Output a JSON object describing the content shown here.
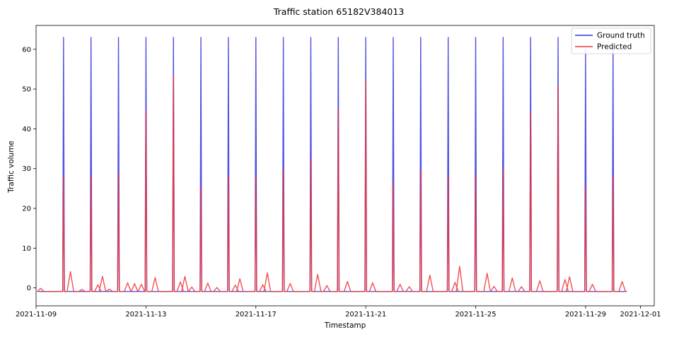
{
  "chart_data": {
    "type": "line",
    "title": "Traffic station 65182V384013",
    "xlabel": "Timestamp",
    "ylabel": "Traffic volume",
    "xlim": [
      "2021-11-09T00:00",
      "2021-12-01T12:00"
    ],
    "ylim": [
      -4.5,
      66
    ],
    "x_ticks": [
      "2021-11-09",
      "2021-11-13",
      "2021-11-17",
      "2021-11-21",
      "2021-11-25",
      "2021-11-29",
      "2021-12-01"
    ],
    "y_ticks": [
      0,
      10,
      20,
      30,
      40,
      50,
      60
    ],
    "grid": false,
    "legend_position": "top-right",
    "baseline": -0.9,
    "series": [
      {
        "name": "Ground truth",
        "color": "#3333dd",
        "spike_dates": [
          "2021-11-10T00:00",
          "2021-11-11T00:00",
          "2021-11-12T00:00",
          "2021-11-13T00:00",
          "2021-11-14T00:00",
          "2021-11-15T00:00",
          "2021-11-16T00:00",
          "2021-11-17T00:00",
          "2021-11-18T00:00",
          "2021-11-19T00:00",
          "2021-11-20T00:00",
          "2021-11-21T00:00",
          "2021-11-22T00:00",
          "2021-11-23T00:00",
          "2021-11-24T00:00",
          "2021-11-25T00:00",
          "2021-11-26T00:00",
          "2021-11-27T00:00",
          "2021-11-28T00:00",
          "2021-11-29T00:00",
          "2021-11-30T00:00"
        ],
        "spike_values": [
          63,
          63,
          63,
          63,
          63,
          63,
          63,
          63,
          63,
          63,
          63,
          63,
          63,
          63,
          63,
          63,
          63,
          63,
          63,
          60,
          60
        ]
      },
      {
        "name": "Predicted",
        "color": "#ee3333",
        "spike_dates": [
          "2021-11-10T00:00",
          "2021-11-11T00:00",
          "2021-11-12T00:00",
          "2021-11-13T00:00",
          "2021-11-14T00:00",
          "2021-11-15T00:00",
          "2021-11-16T00:00",
          "2021-11-17T00:00",
          "2021-11-18T00:00",
          "2021-11-19T00:00",
          "2021-11-20T00:00",
          "2021-11-21T00:00",
          "2021-11-22T00:00",
          "2021-11-23T00:00",
          "2021-11-24T00:00",
          "2021-11-25T00:00",
          "2021-11-26T00:00",
          "2021-11-27T00:00",
          "2021-11-28T00:00",
          "2021-11-29T00:00",
          "2021-11-30T00:00"
        ],
        "spike_values": [
          28,
          28,
          29,
          44.5,
          53.5,
          25.5,
          28,
          28,
          30,
          32.5,
          45,
          52,
          26.5,
          29.5,
          28,
          28.5,
          30,
          44,
          51,
          26,
          28
        ],
        "bumps": [
          {
            "date": "2021-11-09T04:00",
            "value": -0.1
          },
          {
            "date": "2021-11-10T06:00",
            "value": 4.1
          },
          {
            "date": "2021-11-10T16:00",
            "value": -0.4
          },
          {
            "date": "2021-11-11T06:00",
            "value": 0.8
          },
          {
            "date": "2021-11-11T10:00",
            "value": 2.9
          },
          {
            "date": "2021-11-11T16:00",
            "value": -0.3
          },
          {
            "date": "2021-11-12T08:00",
            "value": 1.3
          },
          {
            "date": "2021-11-12T14:00",
            "value": 1.1
          },
          {
            "date": "2021-11-12T20:00",
            "value": 0.9
          },
          {
            "date": "2021-11-13T08:00",
            "value": 2.6
          },
          {
            "date": "2021-11-14T06:00",
            "value": 1.5
          },
          {
            "date": "2021-11-14T10:00",
            "value": 2.9
          },
          {
            "date": "2021-11-14T16:00",
            "value": 0.2
          },
          {
            "date": "2021-11-15T06:00",
            "value": 1.2
          },
          {
            "date": "2021-11-15T14:00",
            "value": 0.1
          },
          {
            "date": "2021-11-16T06:00",
            "value": 0.7
          },
          {
            "date": "2021-11-16T10:00",
            "value": 2.3
          },
          {
            "date": "2021-11-17T06:00",
            "value": 0.8
          },
          {
            "date": "2021-11-17T10:00",
            "value": 3.8
          },
          {
            "date": "2021-11-18T06:00",
            "value": 1.1
          },
          {
            "date": "2021-11-19T06:00",
            "value": 3.4
          },
          {
            "date": "2021-11-19T14:00",
            "value": 0.6
          },
          {
            "date": "2021-11-20T08:00",
            "value": 1.6
          },
          {
            "date": "2021-11-21T06:00",
            "value": 1.3
          },
          {
            "date": "2021-11-22T06:00",
            "value": 0.9
          },
          {
            "date": "2021-11-22T14:00",
            "value": 0.3
          },
          {
            "date": "2021-11-23T08:00",
            "value": 3.2
          },
          {
            "date": "2021-11-24T06:00",
            "value": 1.4
          },
          {
            "date": "2021-11-24T10:00",
            "value": 5.4
          },
          {
            "date": "2021-11-25T10:00",
            "value": 3.7
          },
          {
            "date": "2021-11-25T16:00",
            "value": 0.4
          },
          {
            "date": "2021-11-26T08:00",
            "value": 2.5
          },
          {
            "date": "2021-11-26T16:00",
            "value": 0.3
          },
          {
            "date": "2021-11-27T08:00",
            "value": 1.8
          },
          {
            "date": "2021-11-28T06:00",
            "value": 2.1
          },
          {
            "date": "2021-11-28T10:00",
            "value": 2.8
          },
          {
            "date": "2021-11-29T06:00",
            "value": 0.9
          },
          {
            "date": "2021-11-30T08:00",
            "value": 1.6
          }
        ]
      }
    ]
  }
}
